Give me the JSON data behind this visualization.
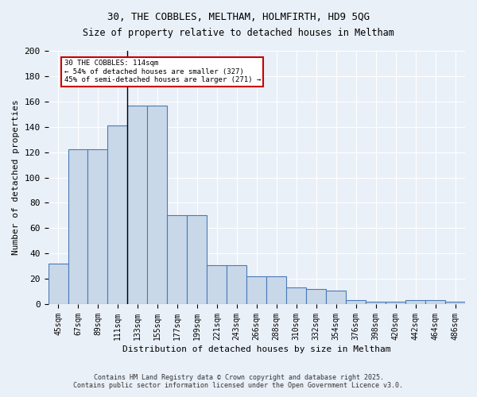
{
  "title1": "30, THE COBBLES, MELTHAM, HOLMFIRTH, HD9 5QG",
  "title2": "Size of property relative to detached houses in Meltham",
  "xlabel": "Distribution of detached houses by size in Meltham",
  "ylabel": "Number of detached properties",
  "bar_color": "#c8d8e8",
  "bar_edge_color": "#4a7ab5",
  "bar_values": [
    32,
    122,
    122,
    141,
    157,
    157,
    70,
    70,
    31,
    31,
    22,
    22,
    13,
    12,
    11,
    3,
    2,
    2,
    3,
    3,
    2
  ],
  "bar_labels": [
    "45sqm",
    "67sqm",
    "89sqm",
    "111sqm",
    "133sqm",
    "155sqm",
    "177sqm",
    "199sqm",
    "221sqm",
    "243sqm",
    "266sqm",
    "288sqm",
    "310sqm",
    "332sqm",
    "354sqm",
    "376sqm",
    "398sqm",
    "420sqm",
    "442sqm",
    "464sqm",
    "486sqm"
  ],
  "ylim": [
    0,
    200
  ],
  "yticks": [
    0,
    20,
    40,
    60,
    80,
    100,
    120,
    140,
    160,
    180,
    200
  ],
  "annotation_line1": "30 THE COBBLES: 114sqm",
  "annotation_line2": "← 54% of detached houses are smaller (327)",
  "annotation_line3": "45% of semi-detached houses are larger (271) →",
  "property_line_x": 3.5,
  "footer1": "Contains HM Land Registry data © Crown copyright and database right 2025.",
  "footer2": "Contains public sector information licensed under the Open Government Licence v3.0.",
  "background_color": "#eaf0f8",
  "grid_color": "#ffffff"
}
